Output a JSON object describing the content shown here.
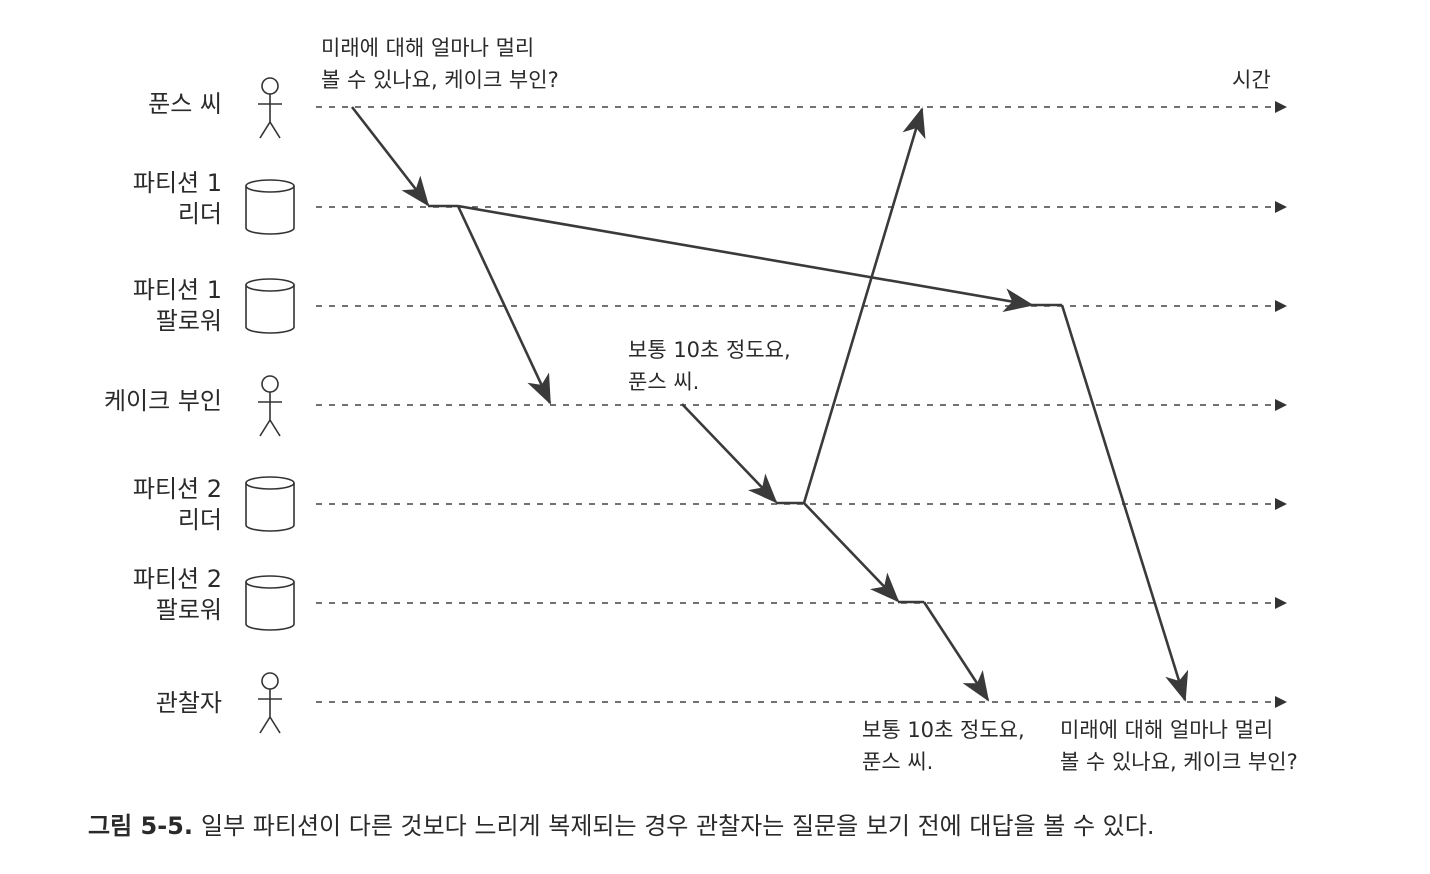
{
  "lanes": [
    {
      "id": "mr-poons",
      "lines": [
        "푼스 씨"
      ],
      "kind": "person"
    },
    {
      "id": "p1-leader",
      "lines": [
        "파티션 1",
        "리더"
      ],
      "kind": "db"
    },
    {
      "id": "p1-follower",
      "lines": [
        "파티션 1",
        "팔로워"
      ],
      "kind": "db"
    },
    {
      "id": "mrs-cake",
      "lines": [
        "케이크 부인"
      ],
      "kind": "person"
    },
    {
      "id": "p2-leader",
      "lines": [
        "파티션 2",
        "리더"
      ],
      "kind": "db"
    },
    {
      "id": "p2-follower",
      "lines": [
        "파티션 2",
        "팔로워"
      ],
      "kind": "db"
    },
    {
      "id": "observer",
      "lines": [
        "관찰자"
      ],
      "kind": "person"
    }
  ],
  "time_label": "시간",
  "notes": {
    "question_top": [
      "미래에 대해 얼마나 멀리",
      "볼 수 있나요, 케이크 부인?"
    ],
    "answer_mid": [
      "보통 10초 정도요,",
      "푼스 씨."
    ],
    "answer_bottom": [
      "보통 10초 정도요,",
      "푼스 씨."
    ],
    "question_bottom": [
      "미래에 대해 얼마나 멀리",
      "볼 수 있나요, 케이크 부인?"
    ]
  },
  "caption": {
    "number": "그림 5-5.",
    "text": "일부 파티션이 다른 것보다 느리게 복제되는 경우 관찰자는 질문을 보기 전에 대답을 볼 수 있다."
  },
  "colors": {
    "arrow": "#3a3a3a",
    "line": "#444444"
  }
}
